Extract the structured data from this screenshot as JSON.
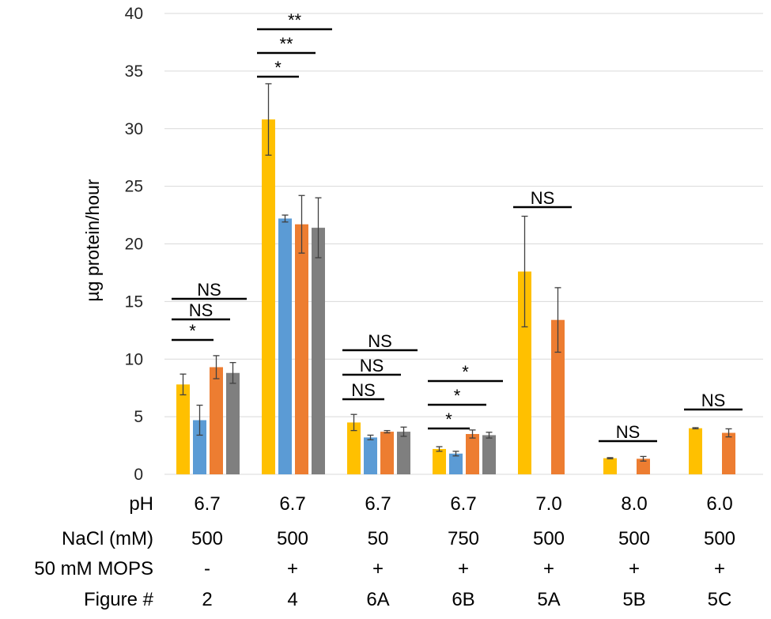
{
  "chart_data": {
    "type": "bar",
    "title": "",
    "ylabel": "µg protein/hour",
    "xlabel": "",
    "ylim": [
      0,
      40
    ],
    "yticks": [
      0,
      5,
      10,
      15,
      20,
      25,
      30,
      35,
      40
    ],
    "grid": true,
    "colors": [
      "#FFC000",
      "#5B9BD5",
      "#ED7D31",
      "#7F7F7F"
    ],
    "groups": [
      {
        "bars": [
          {
            "s": 0,
            "value": 7.8,
            "err": 0.9
          },
          {
            "s": 1,
            "value": 4.7,
            "err": 1.3
          },
          {
            "s": 2,
            "value": 9.3,
            "err": 1.0
          },
          {
            "s": 3,
            "value": 8.8,
            "err": 0.9
          }
        ],
        "sig": [
          {
            "to": 1,
            "label": "*"
          },
          {
            "to": 2,
            "label": "NS"
          },
          {
            "to": 3,
            "label": "NS"
          }
        ]
      },
      {
        "bars": [
          {
            "s": 0,
            "value": 30.8,
            "err": 3.1
          },
          {
            "s": 1,
            "value": 22.2,
            "err": 0.3
          },
          {
            "s": 2,
            "value": 21.7,
            "err": 2.5
          },
          {
            "s": 3,
            "value": 21.4,
            "err": 2.6
          }
        ],
        "sig": [
          {
            "to": 1,
            "label": "*"
          },
          {
            "to": 2,
            "label": "**"
          },
          {
            "to": 3,
            "label": "**"
          }
        ]
      },
      {
        "bars": [
          {
            "s": 0,
            "value": 4.5,
            "err": 0.7
          },
          {
            "s": 1,
            "value": 3.2,
            "err": 0.2
          },
          {
            "s": 2,
            "value": 3.7,
            "err": 0.1
          },
          {
            "s": 3,
            "value": 3.7,
            "err": 0.4
          }
        ],
        "sig": [
          {
            "to": 1,
            "label": "NS"
          },
          {
            "to": 2,
            "label": "NS"
          },
          {
            "to": 3,
            "label": "NS"
          }
        ]
      },
      {
        "bars": [
          {
            "s": 0,
            "value": 2.2,
            "err": 0.2
          },
          {
            "s": 1,
            "value": 1.8,
            "err": 0.2
          },
          {
            "s": 2,
            "value": 3.5,
            "err": 0.35
          },
          {
            "s": 3,
            "value": 3.4,
            "err": 0.25
          }
        ],
        "sig": [
          {
            "to": 1,
            "label": "*"
          },
          {
            "to": 2,
            "label": "*"
          },
          {
            "to": 3,
            "label": "*"
          }
        ]
      },
      {
        "bars": [
          {
            "s": 0,
            "value": 17.6,
            "err": 4.8
          },
          {
            "s": 2,
            "value": 13.4,
            "err": 2.8
          }
        ],
        "sig": [
          {
            "to": 2,
            "label": "NS"
          }
        ]
      },
      {
        "bars": [
          {
            "s": 0,
            "value": 1.4,
            "err": 0.05
          },
          {
            "s": 2,
            "value": 1.35,
            "err": 0.2
          }
        ],
        "sig": [
          {
            "to": 2,
            "label": "NS"
          }
        ]
      },
      {
        "bars": [
          {
            "s": 0,
            "value": 4.0,
            "err": 0.05
          },
          {
            "s": 2,
            "value": 3.6,
            "err": 0.35
          }
        ],
        "sig": [
          {
            "to": 2,
            "label": "NS"
          }
        ]
      }
    ],
    "conditions": [
      {
        "label": "pH",
        "values": [
          "6.7",
          "6.7",
          "6.7",
          "6.7",
          "7.0",
          "8.0",
          "6.0"
        ]
      },
      {
        "label": "NaCl (mM)",
        "values": [
          "500",
          "500",
          "50",
          "750",
          "500",
          "500",
          "500"
        ]
      },
      {
        "label": "50 mM MOPS",
        "values": [
          "-",
          "+",
          "+",
          "+",
          "+",
          "+",
          "+"
        ]
      },
      {
        "label": "Figure #",
        "values": [
          "2",
          "4",
          "6A",
          "6B",
          "5A",
          "5B",
          "5C"
        ]
      }
    ]
  }
}
